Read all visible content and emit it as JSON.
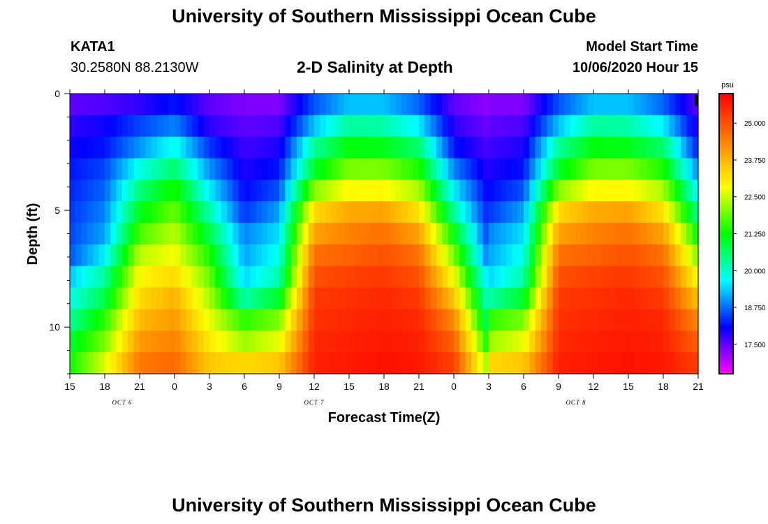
{
  "header": {
    "title": "University of Southern Mississippi Ocean Cube",
    "station": "KATA1",
    "coords": "30.2580N 88.2130W",
    "subtitle": "2-D Salinity at Depth",
    "model_start_label": "Model Start Time",
    "model_start_value": "10/06/2020 Hour 15"
  },
  "footer": {
    "title": "University of Southern Mississippi Ocean Cube"
  },
  "chart_data": {
    "type": "heatmap",
    "title": "2-D Salinity at Depth",
    "xlabel": "Forecast Time(Z)",
    "ylabel": "Depth (ft)",
    "x_tick_labels": [
      "15",
      "18",
      "21",
      "0",
      "3",
      "6",
      "9",
      "12",
      "15",
      "18",
      "21",
      "0",
      "3",
      "6",
      "9",
      "12",
      "15",
      "18",
      "21"
    ],
    "day_labels": [
      {
        "label": "OCT 6",
        "at_hour": 4.5
      },
      {
        "label": "OCT 7",
        "at_hour": 21
      },
      {
        "label": "OCT 8",
        "at_hour": 43.5
      }
    ],
    "x_range_hours": [
      0,
      54
    ],
    "y_ticks": [
      "0",
      "5",
      "10"
    ],
    "y_range_ft": [
      0,
      12
    ],
    "colorbar": {
      "unit": "psu",
      "tick_values": [
        "25.000",
        "23.750",
        "22.500",
        "21.250",
        "20.000",
        "18.750",
        "17.500"
      ],
      "range": [
        16.5,
        26.0
      ],
      "colors": [
        "#ff00ff",
        "#8000ff",
        "#0000ff",
        "#0080ff",
        "#00ffff",
        "#00ff80",
        "#00ff00",
        "#80ff00",
        "#ffff00",
        "#ffc000",
        "#ff8000",
        "#ff4000",
        "#ff0000"
      ]
    },
    "depth_levels_ft": [
      0,
      1,
      2,
      3,
      4,
      5,
      6,
      7,
      8,
      9,
      10,
      11,
      12
    ],
    "salinity_profiles": {
      "columns": [
        {
          "hour": 0,
          "values": [
            17.5,
            17.8,
            18.0,
            18.2,
            18.3,
            18.4,
            18.5,
            18.6,
            19.3,
            19.8,
            20.3,
            20.9,
            21.3
          ]
        },
        {
          "hour": 3,
          "values": [
            17.6,
            18.0,
            18.2,
            18.5,
            18.7,
            18.9,
            19.1,
            19.6,
            20.3,
            20.8,
            21.5,
            22.0,
            22.6
          ]
        },
        {
          "hour": 6,
          "values": [
            17.8,
            18.5,
            19.0,
            19.8,
            20.5,
            21.1,
            21.7,
            22.4,
            22.9,
            23.3,
            23.7,
            24.1,
            24.5
          ]
        },
        {
          "hour": 9,
          "values": [
            18.2,
            18.9,
            19.8,
            20.6,
            21.4,
            21.9,
            22.4,
            22.8,
            23.3,
            23.8,
            24.1,
            24.4,
            24.7
          ]
        },
        {
          "hour": 12,
          "values": [
            17.5,
            17.8,
            18.4,
            19.0,
            19.6,
            20.2,
            20.8,
            21.4,
            21.9,
            22.3,
            22.7,
            23.1,
            23.5
          ]
        },
        {
          "hour": 15,
          "values": [
            17.3,
            17.5,
            17.7,
            17.9,
            18.1,
            18.4,
            18.9,
            19.1,
            19.4,
            20.2,
            21.5,
            22.2,
            23.3
          ]
        },
        {
          "hour": 18,
          "values": [
            17.3,
            17.6,
            17.9,
            18.2,
            18.6,
            19.1,
            19.5,
            19.8,
            20.2,
            21.0,
            22.0,
            22.7,
            23.5
          ]
        },
        {
          "hour": 21,
          "values": [
            18.6,
            19.3,
            20.3,
            21.0,
            22.1,
            23.3,
            24.0,
            24.6,
            25.0,
            25.3,
            25.4,
            25.5,
            25.6
          ]
        },
        {
          "hour": 24,
          "values": [
            19.3,
            20.3,
            21.2,
            22.0,
            22.9,
            23.9,
            24.4,
            24.8,
            25.2,
            25.4,
            25.5,
            25.6,
            25.7
          ]
        },
        {
          "hour": 27,
          "values": [
            19.3,
            20.2,
            21.1,
            22.0,
            22.9,
            24.0,
            24.6,
            25.0,
            25.3,
            25.5,
            25.6,
            25.7,
            25.8
          ]
        },
        {
          "hour": 30,
          "values": [
            18.7,
            19.6,
            20.6,
            21.4,
            22.3,
            23.2,
            24.0,
            24.6,
            25.0,
            25.3,
            25.5,
            25.6,
            25.7
          ]
        },
        {
          "hour": 33,
          "values": [
            17.5,
            17.8,
            18.2,
            18.9,
            19.6,
            20.3,
            21.2,
            22.0,
            22.8,
            23.6,
            24.3,
            24.8,
            25.2
          ]
        },
        {
          "hour": 36,
          "values": [
            17.2,
            17.4,
            17.6,
            17.8,
            18.0,
            18.2,
            18.4,
            18.7,
            19.3,
            19.9,
            20.5,
            21.2,
            22.1
          ]
        }
      ]
    }
  }
}
